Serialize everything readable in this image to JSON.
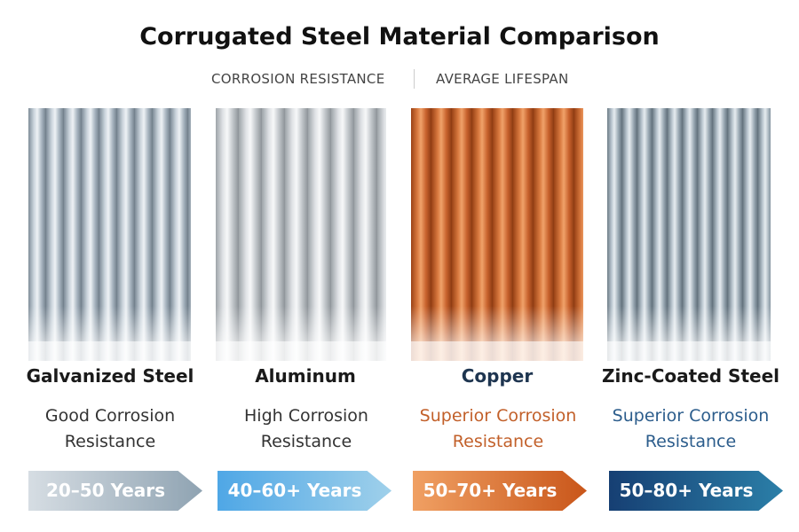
{
  "header": {
    "title": "Corrugated Steel Material Comparison",
    "tabs": [
      "CORROSION RESISTANCE",
      "AVERAGE LIFESPAN"
    ]
  },
  "materials": [
    {
      "name": "Galvanized Steel",
      "description": "Good Corrosion Resistance",
      "lifespan": "20–50 Years"
    },
    {
      "name": "Aluminum",
      "description": "High Corrosion Resistance",
      "lifespan": "40–60+ Years"
    },
    {
      "name": "Copper",
      "description": "Superior Corrosion Resistance",
      "lifespan": "50–70+ Years"
    },
    {
      "name": "Zinc-Coated Steel",
      "description": "Superior Corrosion Resistance",
      "lifespan": "50–80+ Years"
    }
  ]
}
